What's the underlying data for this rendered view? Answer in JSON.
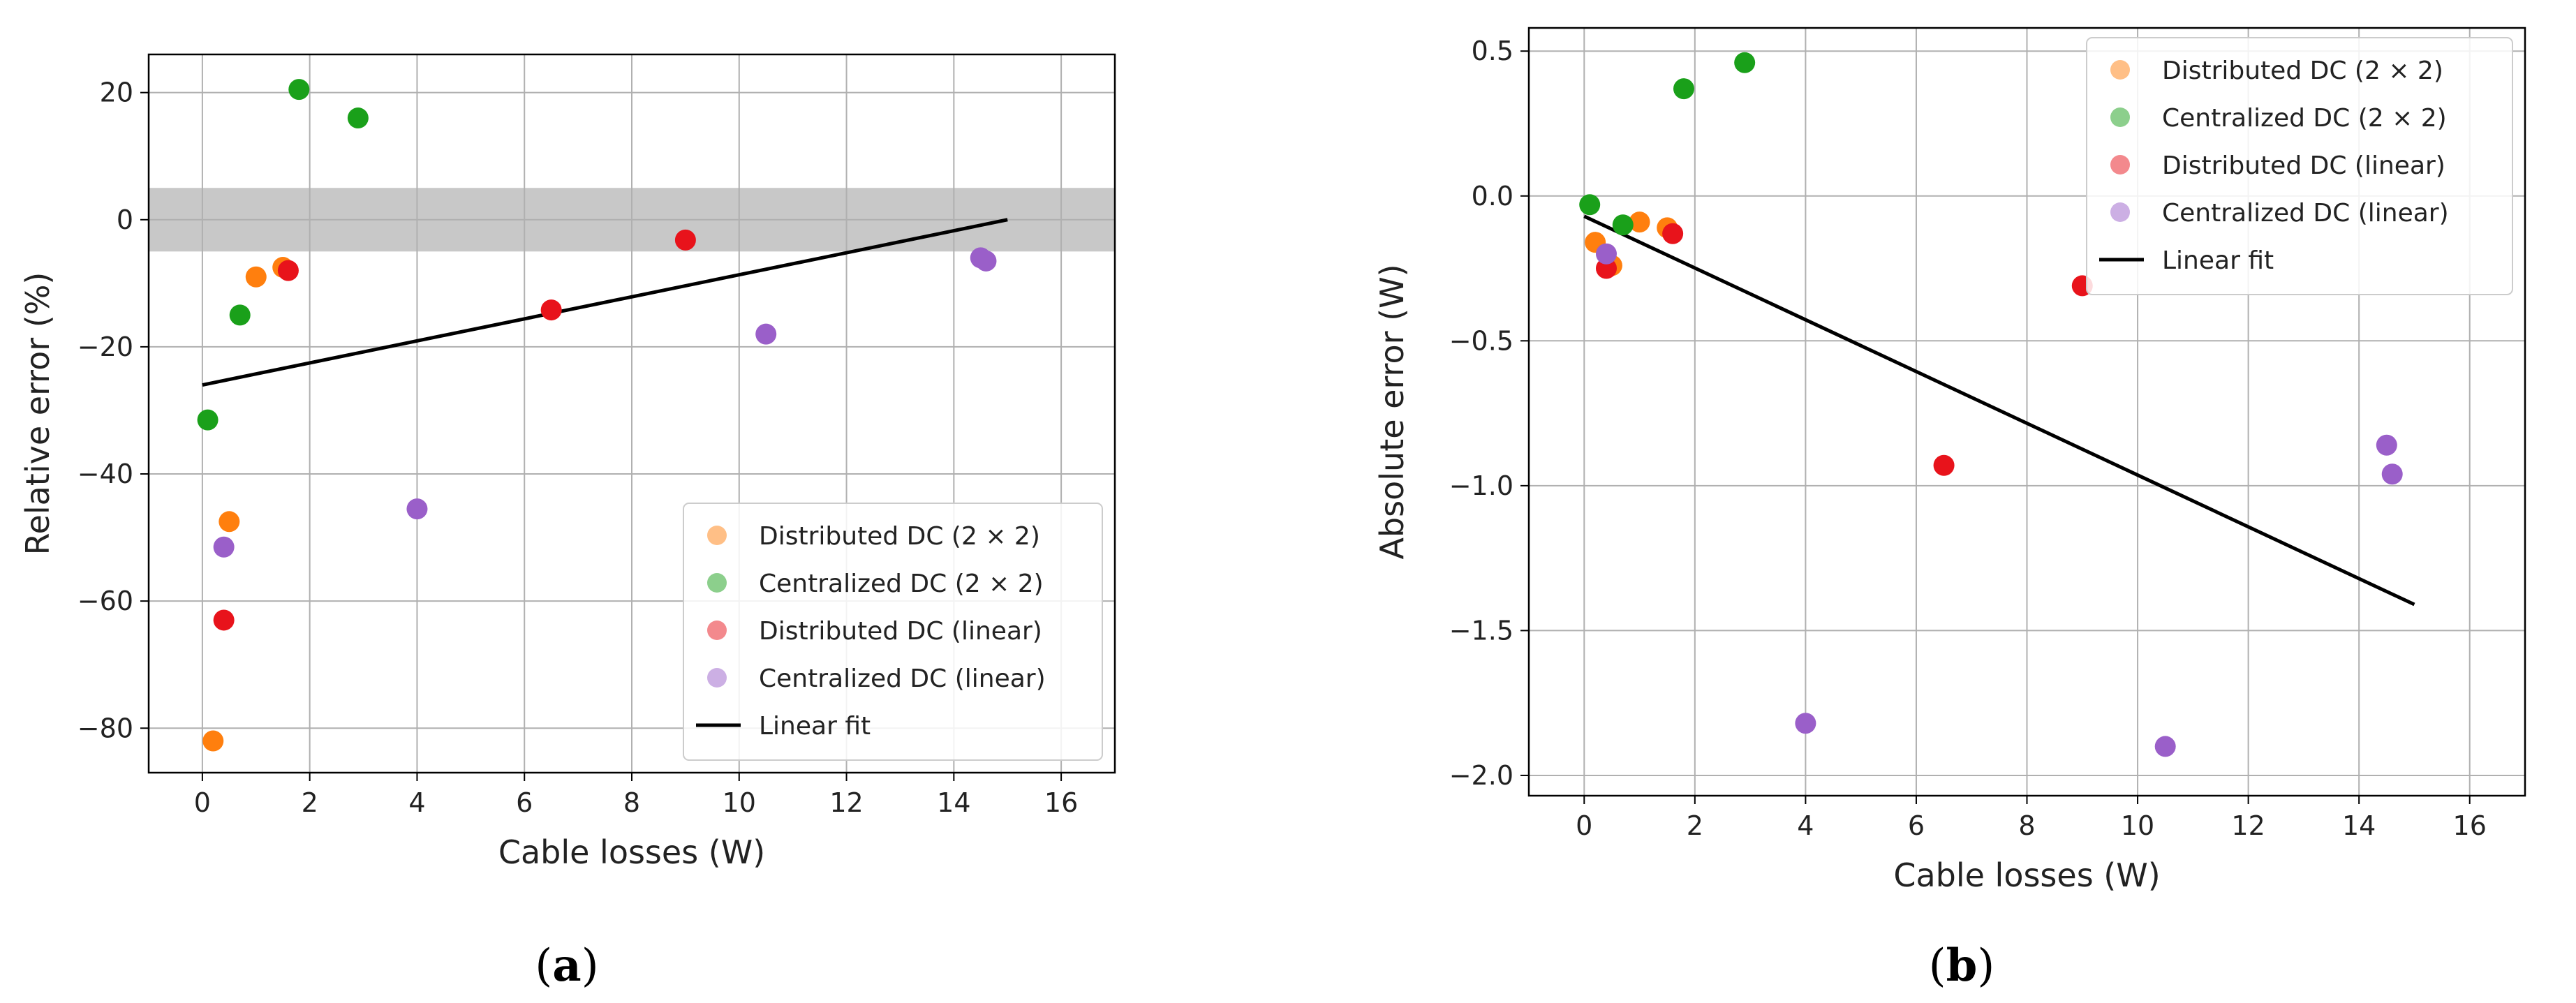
{
  "chart_data": [
    {
      "type": "scatter",
      "panel_label": "a",
      "xlabel": "Cable losses (W)",
      "ylabel": "Relative error (%)",
      "xlim": [
        -1,
        17
      ],
      "ylim": [
        -87,
        26
      ],
      "xticks": [
        0,
        2,
        4,
        6,
        8,
        10,
        12,
        14,
        16
      ],
      "yticks": [
        -80,
        -60,
        -40,
        -20,
        0,
        20
      ],
      "ytick_labels": [
        "−80",
        "−60",
        "−40",
        "−20",
        "0",
        "20"
      ],
      "grid": true,
      "band": {
        "y0": -5,
        "y1": 5,
        "color": "#c8c8c8"
      },
      "legend_position": "lower-right",
      "series": [
        {
          "name": "Distributed DC (2 × 2)",
          "color": "#ff7f0e",
          "points": [
            [
              0.2,
              -82
            ],
            [
              0.5,
              -47.5
            ],
            [
              1.0,
              -9
            ],
            [
              1.5,
              -7.5
            ]
          ]
        },
        {
          "name": "Centralized DC (2 × 2)",
          "color": "#1aa01a",
          "points": [
            [
              0.1,
              -31.5
            ],
            [
              0.7,
              -15
            ],
            [
              1.8,
              20.5
            ],
            [
              2.9,
              16
            ]
          ]
        },
        {
          "name": "Distributed DC (linear)",
          "color": "#e8131b",
          "points": [
            [
              0.4,
              -63
            ],
            [
              1.6,
              -8
            ],
            [
              6.5,
              -14.2
            ],
            [
              9.0,
              -3.2
            ]
          ]
        },
        {
          "name": "Centralized DC (linear)",
          "color": "#9a5fc9",
          "points": [
            [
              0.4,
              -51.5
            ],
            [
              4.0,
              -45.5
            ],
            [
              10.5,
              -18
            ],
            [
              14.5,
              -6
            ],
            [
              14.6,
              -6.5
            ]
          ]
        }
      ],
      "fit": {
        "name": "Linear fit",
        "color": "#000000",
        "x": [
          0,
          15
        ],
        "y": [
          -26,
          0
        ]
      }
    },
    {
      "type": "scatter",
      "panel_label": "b",
      "xlabel": "Cable losses (W)",
      "ylabel": "Absolute error (W)",
      "xlim": [
        -1,
        17
      ],
      "ylim": [
        -2.07,
        0.58
      ],
      "xticks": [
        0,
        2,
        4,
        6,
        8,
        10,
        12,
        14,
        16
      ],
      "yticks": [
        -2.0,
        -1.5,
        -1.0,
        -0.5,
        0.0,
        0.5
      ],
      "ytick_labels": [
        "−2.0",
        "−1.5",
        "−1.0",
        "−0.5",
        "0.0",
        "0.5"
      ],
      "grid": true,
      "legend_position": "top-right",
      "series": [
        {
          "name": "Distributed DC (2 × 2)",
          "color": "#ff7f0e",
          "points": [
            [
              0.2,
              -0.16
            ],
            [
              0.5,
              -0.24
            ],
            [
              1.0,
              -0.09
            ],
            [
              1.5,
              -0.11
            ]
          ]
        },
        {
          "name": "Centralized DC (2 × 2)",
          "color": "#1aa01a",
          "points": [
            [
              0.1,
              -0.03
            ],
            [
              0.7,
              -0.1
            ],
            [
              1.8,
              0.37
            ],
            [
              2.9,
              0.46
            ]
          ]
        },
        {
          "name": "Distributed DC (linear)",
          "color": "#e8131b",
          "points": [
            [
              0.4,
              -0.25
            ],
            [
              1.6,
              -0.13
            ],
            [
              6.5,
              -0.93
            ],
            [
              9.0,
              -0.31
            ]
          ]
        },
        {
          "name": "Centralized DC (linear)",
          "color": "#9a5fc9",
          "points": [
            [
              0.4,
              -0.2
            ],
            [
              4.0,
              -1.82
            ],
            [
              10.5,
              -1.9
            ],
            [
              14.5,
              -0.86
            ],
            [
              14.6,
              -0.96
            ]
          ]
        }
      ],
      "fit": {
        "name": "Linear fit",
        "color": "#000000",
        "x": [
          0,
          15
        ],
        "y": [
          -0.07,
          -1.41
        ]
      }
    }
  ]
}
